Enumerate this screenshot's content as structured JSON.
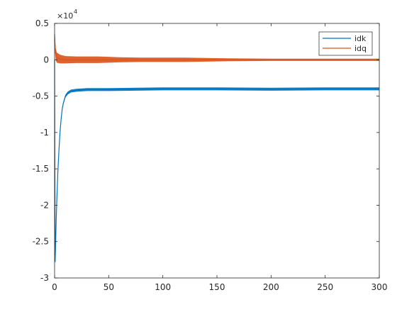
{
  "chart_data": {
    "type": "line",
    "title": "",
    "xlabel": "",
    "ylabel": "",
    "xlim": [
      0,
      300
    ],
    "ylim": [
      -3,
      0.5
    ],
    "y_multiplier": "×10",
    "y_exponent": "4",
    "xticks": [
      0,
      50,
      100,
      150,
      200,
      250,
      300
    ],
    "yticks": [
      -3,
      -2.5,
      -2,
      -1.5,
      -1,
      -0.5,
      0,
      0.5
    ],
    "xtick_labels": [
      "0",
      "50",
      "100",
      "150",
      "200",
      "250",
      "300"
    ],
    "ytick_labels": [
      "-3",
      "-2.5",
      "-2",
      "-1.5",
      "-1",
      "-0.5",
      "0",
      "0.5"
    ],
    "grid": false,
    "legend": "top-right",
    "series": [
      {
        "name": "idk",
        "color": "#0072BD",
        "x": [
          0,
          0.5,
          1,
          1.5,
          2,
          3,
          4,
          5,
          6,
          7,
          8,
          10,
          12,
          15,
          20,
          30,
          50,
          100,
          150,
          200,
          250,
          300
        ],
        "y": [
          0,
          -2.78,
          -2.5,
          -2.2,
          -1.95,
          -1.55,
          -1.25,
          -1.0,
          -0.82,
          -0.68,
          -0.6,
          -0.5,
          -0.46,
          -0.43,
          -0.42,
          -0.41,
          -0.41,
          -0.4,
          -0.4,
          -0.405,
          -0.4,
          -0.4
        ],
        "band": 0.02
      },
      {
        "name": "idq",
        "color": "#D95319",
        "x": [
          0,
          0.5,
          1,
          2,
          5,
          10,
          20,
          30,
          40,
          50,
          60,
          80,
          100,
          120,
          140,
          160,
          200,
          250,
          300
        ],
        "y": [
          0.35,
          0.18,
          0.08,
          0.03,
          0.01,
          0.0,
          0.0,
          0.0,
          0.0,
          0.0,
          0.0,
          0.0,
          0.0,
          0.0,
          0.0,
          0.0,
          0.0,
          0.0,
          0.0
        ],
        "band": [
          0.09,
          0.09,
          0.08,
          0.07,
          0.06,
          0.05,
          0.045,
          0.045,
          0.045,
          0.04,
          0.035,
          0.03,
          0.03,
          0.03,
          0.025,
          0.02,
          0.015,
          0.015,
          0.015
        ]
      }
    ]
  }
}
